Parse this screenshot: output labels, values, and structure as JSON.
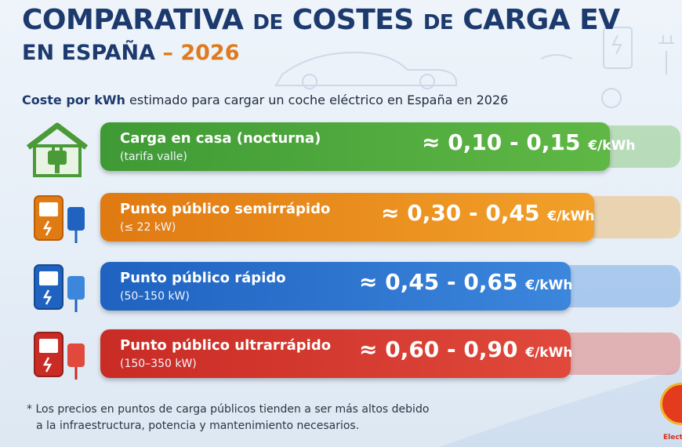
{
  "title": {
    "line1_a": "COMPARATIVA",
    "line1_b": "DE",
    "line1_c": "COSTES",
    "line1_d": "DE",
    "line1_e": "CARGA EV",
    "line2_a": "EN ESPAÑA",
    "line2_dash": "–",
    "line2_year": "2026"
  },
  "subtitle": {
    "bold": "Coste por kWh",
    "rest": "estimado para cargar un coche eléctrico en España en 2026"
  },
  "rows": [
    {
      "label": "Carga en casa (nocturna)",
      "sub": "(tarifa valle)",
      "price": "≈ 0,10 - 0,15",
      "unit": "€/kWh",
      "color": "#3f9a35",
      "color2": "#5fb845",
      "icon": "house-plug-icon"
    },
    {
      "label": "Punto público semirrápido",
      "sub": "(≤ 22 kW)",
      "price": "≈ 0,30 - 0,45",
      "unit": "€/kWh",
      "color": "#e07a12",
      "color2": "#f2a02a",
      "icon": "charger-station-icon"
    },
    {
      "label": "Punto público rápido",
      "sub": "(50–150 kW)",
      "price": "≈ 0,45 - 0,65",
      "unit": "€/kWh",
      "color": "#1f62c0",
      "color2": "#3c86dc",
      "icon": "charger-station-icon"
    },
    {
      "label": "Punto público ultrarrápido",
      "sub": "(150–350 kW)",
      "price": "≈ 0,60 - 0,90",
      "unit": "€/kWh",
      "color": "#c92b25",
      "color2": "#e0493b",
      "icon": "charger-station-icon"
    }
  ],
  "footnote": {
    "line1": "* Los precios en puntos de carga públicos tienden a ser más altos debido",
    "line2": "a la infraestructura, potencia y mantenimiento necesarios."
  },
  "logo": {
    "text": "Elect"
  }
}
